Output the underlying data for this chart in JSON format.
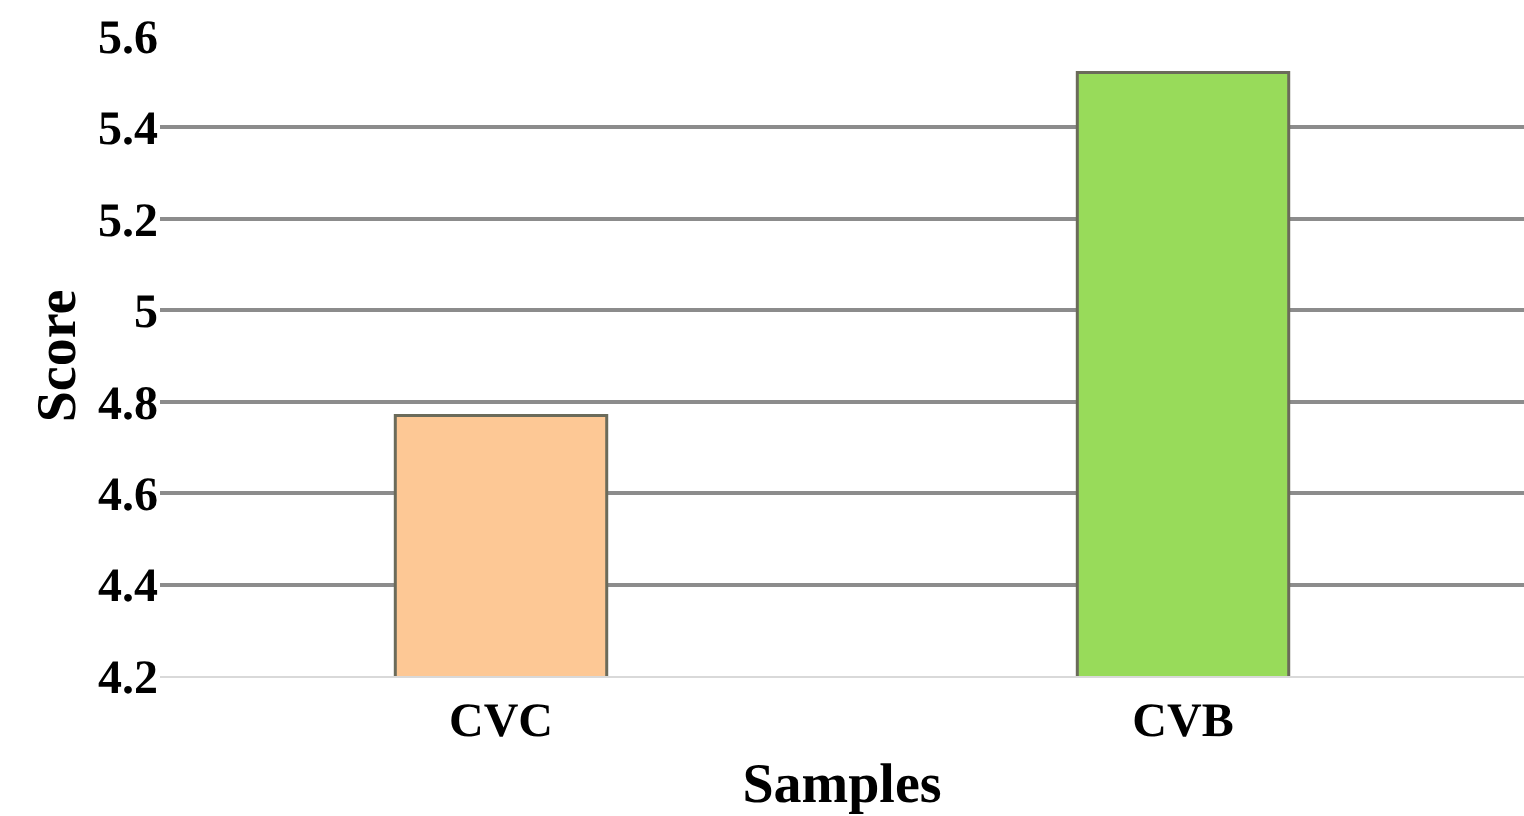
{
  "chart_data": {
    "type": "bar",
    "xlabel": "Samples",
    "ylabel": "Score",
    "categories": [
      "CVC",
      "CVB"
    ],
    "values": [
      4.77,
      5.52
    ],
    "colors": [
      "#fdc895",
      "#98db5a"
    ],
    "ylim": [
      4.2,
      5.6
    ],
    "yticks": [
      4.2,
      4.4,
      4.6,
      4.8,
      {
        "value": 5,
        "label": "5"
      },
      5.2,
      5.4,
      5.6
    ],
    "grid": "y"
  }
}
